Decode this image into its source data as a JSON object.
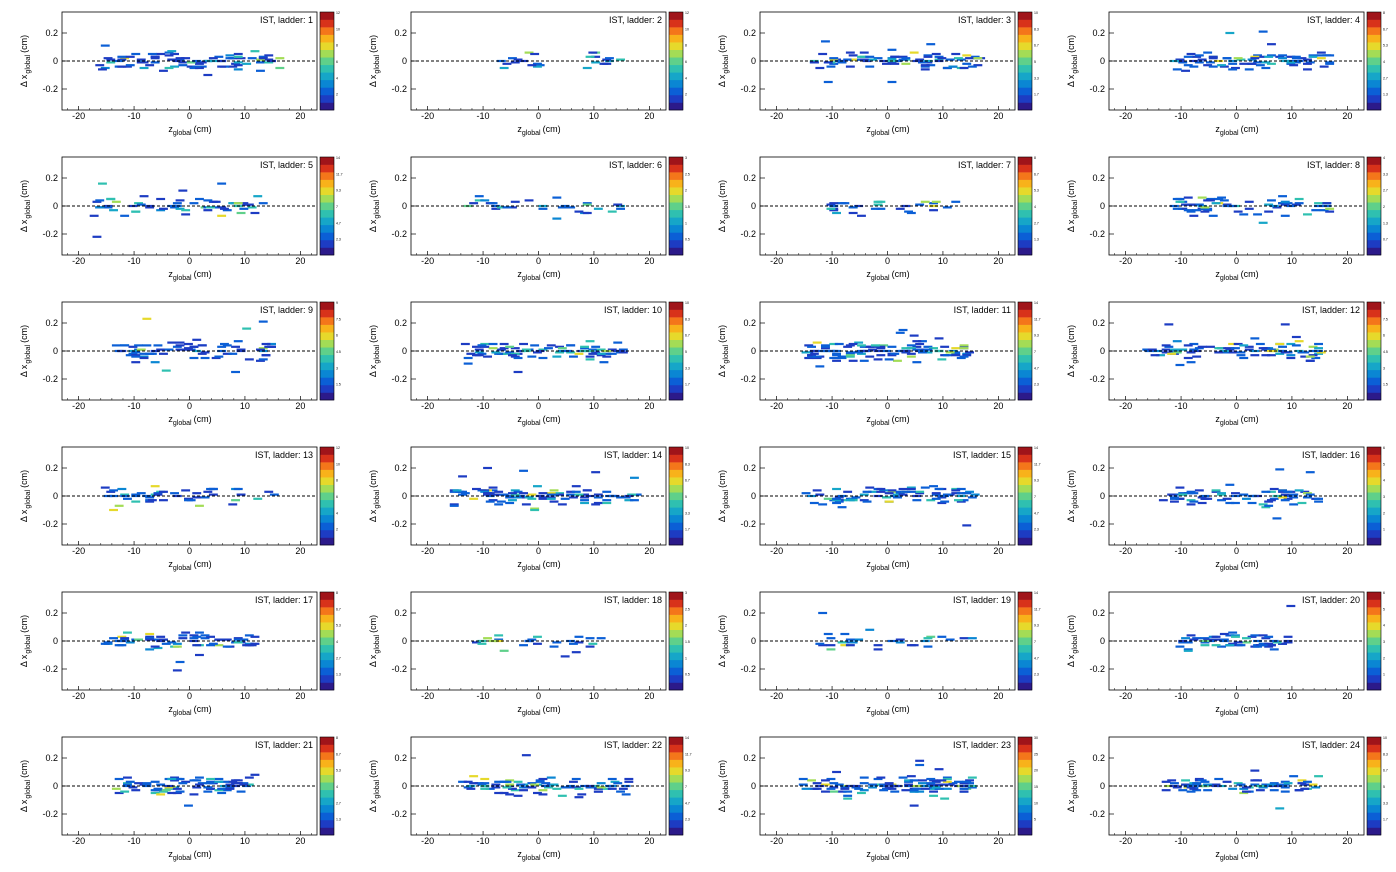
{
  "figure": {
    "rows": 6,
    "cols": 4
  },
  "colors": {
    "palette": [
      "#2c1a8a",
      "#1d3cc3",
      "#0b5fd6",
      "#0a86d3",
      "#16a6c8",
      "#2fc0b0",
      "#5fd08a",
      "#a3dc56",
      "#e6d92b",
      "#f8b21a",
      "#f4761a",
      "#d8321a",
      "#a0141a"
    ],
    "dashed_line": "#000000",
    "frame": "#000000"
  },
  "chart_data": [
    {
      "type": "heatmap",
      "title": "IST, ladder: 1",
      "xlabel_main": "z",
      "xlabel_sub": "global",
      "xlabel_unit": "(cm)",
      "ylabel_main": "Δ x",
      "ylabel_sub": "global",
      "ylabel_unit": "(cm)",
      "xlim": [
        -23,
        23
      ],
      "ylim": [
        -0.35,
        0.35
      ],
      "xticks": [
        "-20",
        "-10",
        "0",
        "10",
        "20"
      ],
      "yticks": [
        "-0.2",
        "0",
        "0.2"
      ],
      "zmax": 12,
      "spread": [
        -17,
        16
      ],
      "density": 1.0,
      "gaps": []
    },
    {
      "type": "heatmap",
      "title": "IST, ladder: 2",
      "xlabel_main": "z",
      "xlabel_sub": "global",
      "xlabel_unit": "(cm)",
      "ylabel_main": "Δ x",
      "ylabel_sub": "global",
      "ylabel_unit": "(cm)",
      "xlim": [
        -23,
        23
      ],
      "ylim": [
        -0.35,
        0.35
      ],
      "xticks": [
        "-20",
        "-10",
        "0",
        "10",
        "20"
      ],
      "yticks": [
        "-0.2",
        "0",
        "0.2"
      ],
      "zmax": 12,
      "spread": [
        -8,
        14
      ],
      "density": 0.55,
      "gaps": [
        [
          0,
          8
        ]
      ]
    },
    {
      "type": "heatmap",
      "title": "IST, ladder: 3",
      "xlabel_main": "z",
      "xlabel_sub": "global",
      "xlabel_unit": "(cm)",
      "ylabel_main": "Δ x",
      "ylabel_sub": "global",
      "ylabel_unit": "(cm)",
      "xlim": [
        -23,
        23
      ],
      "ylim": [
        -0.35,
        0.35
      ],
      "xticks": [
        "-20",
        "-10",
        "0",
        "10",
        "20"
      ],
      "yticks": [
        "-0.2",
        "0",
        "0.2"
      ],
      "zmax": 10,
      "spread": [
        -14,
        16
      ],
      "density": 1.0,
      "gaps": []
    },
    {
      "type": "heatmap",
      "title": "IST, ladder: 4",
      "xlabel_main": "z",
      "xlabel_sub": "global",
      "xlabel_unit": "(cm)",
      "ylabel_main": "Δ x",
      "ylabel_sub": "global",
      "ylabel_unit": "(cm)",
      "xlim": [
        -23,
        23
      ],
      "ylim": [
        -0.35,
        0.35
      ],
      "xticks": [
        "-20",
        "-10",
        "0",
        "10",
        "20"
      ],
      "yticks": [
        "-0.2",
        "0",
        "0.2"
      ],
      "zmax": 8,
      "spread": [
        -13,
        16
      ],
      "density": 0.9,
      "gaps": []
    },
    {
      "type": "heatmap",
      "title": "IST, ladder: 5",
      "xlabel_main": "z",
      "xlabel_sub": "global",
      "xlabel_unit": "(cm)",
      "ylabel_main": "Δ x",
      "ylabel_sub": "global",
      "ylabel_unit": "(cm)",
      "xlim": [
        -23,
        23
      ],
      "ylim": [
        -0.35,
        0.35
      ],
      "xticks": [
        "-20",
        "-10",
        "0",
        "10",
        "20"
      ],
      "yticks": [
        "-0.2",
        "0",
        "0.2"
      ],
      "zmax": 14,
      "spread": [
        -18,
        14
      ],
      "density": 0.7,
      "gaps": []
    },
    {
      "type": "heatmap",
      "title": "IST, ladder: 6",
      "xlabel_main": "z",
      "xlabel_sub": "global",
      "xlabel_unit": "(cm)",
      "ylabel_main": "Δ x",
      "ylabel_sub": "global",
      "ylabel_unit": "(cm)",
      "xlim": [
        -23,
        23
      ],
      "ylim": [
        -0.35,
        0.35
      ],
      "xticks": [
        "-20",
        "-10",
        "0",
        "10",
        "20"
      ],
      "yticks": [
        "-0.2",
        "0",
        "0.2"
      ],
      "zmax": 3,
      "spread": [
        -14,
        15
      ],
      "density": 0.35,
      "gaps": []
    },
    {
      "type": "heatmap",
      "title": "IST, ladder: 7",
      "xlabel_main": "z",
      "xlabel_sub": "global",
      "xlabel_unit": "(cm)",
      "ylabel_main": "Δ x",
      "ylabel_sub": "global",
      "ylabel_unit": "(cm)",
      "xlim": [
        -23,
        23
      ],
      "ylim": [
        -0.35,
        0.35
      ],
      "xticks": [
        "-20",
        "-10",
        "0",
        "10",
        "20"
      ],
      "yticks": [
        "-0.2",
        "0",
        "0.2"
      ],
      "zmax": 8,
      "spread": [
        -12,
        13
      ],
      "density": 0.35,
      "gaps": []
    },
    {
      "type": "heatmap",
      "title": "IST, ladder: 8",
      "xlabel_main": "z",
      "xlabel_sub": "global",
      "xlabel_unit": "(cm)",
      "ylabel_main": "Δ x",
      "ylabel_sub": "global",
      "ylabel_unit": "(cm)",
      "xlim": [
        -23,
        23
      ],
      "ylim": [
        -0.35,
        0.35
      ],
      "xticks": [
        "-20",
        "-10",
        "0",
        "10",
        "20"
      ],
      "yticks": [
        "-0.2",
        "0",
        "0.2"
      ],
      "zmax": 4,
      "spread": [
        -13,
        16
      ],
      "density": 0.8,
      "gaps": []
    },
    {
      "type": "heatmap",
      "title": "IST, ladder: 9",
      "xlabel_main": "z",
      "xlabel_sub": "global",
      "xlabel_unit": "(cm)",
      "ylabel_main": "Δ x",
      "ylabel_sub": "global",
      "ylabel_unit": "(cm)",
      "xlim": [
        -23,
        23
      ],
      "ylim": [
        -0.35,
        0.35
      ],
      "xticks": [
        "-20",
        "-10",
        "0",
        "10",
        "20"
      ],
      "yticks": [
        "-0.2",
        "0",
        "0.2"
      ],
      "zmax": 9,
      "spread": [
        -14,
        14
      ],
      "density": 0.85,
      "gaps": []
    },
    {
      "type": "heatmap",
      "title": "IST, ladder: 10",
      "xlabel_main": "z",
      "xlabel_sub": "global",
      "xlabel_unit": "(cm)",
      "ylabel_main": "Δ x",
      "ylabel_sub": "global",
      "ylabel_unit": "(cm)",
      "xlim": [
        -23,
        23
      ],
      "ylim": [
        -0.35,
        0.35
      ],
      "xticks": [
        "-20",
        "-10",
        "0",
        "10",
        "20"
      ],
      "yticks": [
        "-0.2",
        "0",
        "0.2"
      ],
      "zmax": 10,
      "spread": [
        -14,
        15
      ],
      "density": 0.95,
      "gaps": []
    },
    {
      "type": "heatmap",
      "title": "IST, ladder: 11",
      "xlabel_main": "z",
      "xlabel_sub": "global",
      "xlabel_unit": "(cm)",
      "ylabel_main": "Δ x",
      "ylabel_sub": "global",
      "ylabel_unit": "(cm)",
      "xlim": [
        -23,
        23
      ],
      "ylim": [
        -0.35,
        0.35
      ],
      "xticks": [
        "-20",
        "-10",
        "0",
        "10",
        "20"
      ],
      "yticks": [
        "-0.2",
        "0",
        "0.2"
      ],
      "zmax": 14,
      "spread": [
        -16,
        14
      ],
      "density": 1.3,
      "gaps": []
    },
    {
      "type": "heatmap",
      "title": "IST, ladder: 12",
      "xlabel_main": "z",
      "xlabel_sub": "global",
      "xlabel_unit": "(cm)",
      "ylabel_main": "Δ x",
      "ylabel_sub": "global",
      "ylabel_unit": "(cm)",
      "xlim": [
        -23,
        23
      ],
      "ylim": [
        -0.35,
        0.35
      ],
      "xticks": [
        "-20",
        "-10",
        "0",
        "10",
        "20"
      ],
      "yticks": [
        "-0.2",
        "0",
        "0.2"
      ],
      "zmax": 9,
      "spread": [
        -17,
        15
      ],
      "density": 1.1,
      "gaps": []
    },
    {
      "type": "heatmap",
      "title": "IST, ladder: 13",
      "xlabel_main": "z",
      "xlabel_sub": "global",
      "xlabel_unit": "(cm)",
      "ylabel_main": "Δ x",
      "ylabel_sub": "global",
      "ylabel_unit": "(cm)",
      "xlim": [
        -23,
        23
      ],
      "ylim": [
        -0.35,
        0.35
      ],
      "xticks": [
        "-20",
        "-10",
        "0",
        "10",
        "20"
      ],
      "yticks": [
        "-0.2",
        "0",
        "0.2"
      ],
      "zmax": 12,
      "spread": [
        -16,
        17
      ],
      "density": 0.55,
      "gaps": []
    },
    {
      "type": "heatmap",
      "title": "IST, ladder: 14",
      "xlabel_main": "z",
      "xlabel_sub": "global",
      "xlabel_unit": "(cm)",
      "ylabel_main": "Δ x",
      "ylabel_sub": "global",
      "ylabel_unit": "(cm)",
      "xlim": [
        -23,
        23
      ],
      "ylim": [
        -0.35,
        0.35
      ],
      "xticks": [
        "-20",
        "-10",
        "0",
        "10",
        "20"
      ],
      "yticks": [
        "-0.2",
        "0",
        "0.2"
      ],
      "zmax": 10,
      "spread": [
        -16,
        17
      ],
      "density": 1.1,
      "gaps": []
    },
    {
      "type": "heatmap",
      "title": "IST, ladder: 15",
      "xlabel_main": "z",
      "xlabel_sub": "global",
      "xlabel_unit": "(cm)",
      "ylabel_main": "Δ x",
      "ylabel_sub": "global",
      "ylabel_unit": "(cm)",
      "xlim": [
        -23,
        23
      ],
      "ylim": [
        -0.35,
        0.35
      ],
      "xticks": [
        "-20",
        "-10",
        "0",
        "10",
        "20"
      ],
      "yticks": [
        "-0.2",
        "0",
        "0.2"
      ],
      "zmax": 14,
      "spread": [
        -16,
        16
      ],
      "density": 1.0,
      "gaps": []
    },
    {
      "type": "heatmap",
      "title": "IST, ladder: 16",
      "xlabel_main": "z",
      "xlabel_sub": "global",
      "xlabel_unit": "(cm)",
      "ylabel_main": "Δ x",
      "ylabel_sub": "global",
      "ylabel_unit": "(cm)",
      "xlim": [
        -23,
        23
      ],
      "ylim": [
        -0.35,
        0.35
      ],
      "xticks": [
        "-20",
        "-10",
        "0",
        "10",
        "20"
      ],
      "yticks": [
        "-0.2",
        "0",
        "0.2"
      ],
      "zmax": 6,
      "spread": [
        -14,
        15
      ],
      "density": 0.85,
      "gaps": []
    },
    {
      "type": "heatmap",
      "title": "IST, ladder: 17",
      "xlabel_main": "z",
      "xlabel_sub": "global",
      "xlabel_unit": "(cm)",
      "ylabel_main": "Δ x",
      "ylabel_sub": "global",
      "ylabel_unit": "(cm)",
      "xlim": [
        -23,
        23
      ],
      "ylim": [
        -0.35,
        0.35
      ],
      "xticks": [
        "-20",
        "-10",
        "0",
        "10",
        "20"
      ],
      "yticks": [
        "-0.2",
        "0",
        "0.2"
      ],
      "zmax": 8,
      "spread": [
        -16,
        12
      ],
      "density": 0.8,
      "gaps": []
    },
    {
      "type": "heatmap",
      "title": "IST, ladder: 18",
      "xlabel_main": "z",
      "xlabel_sub": "global",
      "xlabel_unit": "(cm)",
      "ylabel_main": "Δ x",
      "ylabel_sub": "global",
      "ylabel_unit": "(cm)",
      "xlim": [
        -23,
        23
      ],
      "ylim": [
        -0.35,
        0.35
      ],
      "xticks": [
        "-20",
        "-10",
        "0",
        "10",
        "20"
      ],
      "yticks": [
        "-0.2",
        "0",
        "0.2"
      ],
      "zmax": 3,
      "spread": [
        -13,
        12
      ],
      "density": 0.3,
      "gaps": []
    },
    {
      "type": "heatmap",
      "title": "IST, ladder: 19",
      "xlabel_main": "z",
      "xlabel_sub": "global",
      "xlabel_unit": "(cm)",
      "ylabel_main": "Δ x",
      "ylabel_sub": "global",
      "ylabel_unit": "(cm)",
      "xlim": [
        -23,
        23
      ],
      "ylim": [
        -0.35,
        0.35
      ],
      "xticks": [
        "-20",
        "-10",
        "0",
        "10",
        "20"
      ],
      "yticks": [
        "-0.2",
        "0",
        "0.2"
      ],
      "zmax": 14,
      "spread": [
        -14,
        15
      ],
      "density": 0.35,
      "gaps": []
    },
    {
      "type": "heatmap",
      "title": "IST, ladder: 20",
      "xlabel_main": "z",
      "xlabel_sub": "global",
      "xlabel_unit": "(cm)",
      "ylabel_main": "Δ x",
      "ylabel_sub": "global",
      "ylabel_unit": "(cm)",
      "xlim": [
        -23,
        23
      ],
      "ylim": [
        -0.35,
        0.35
      ],
      "xticks": [
        "-20",
        "-10",
        "0",
        "10",
        "20"
      ],
      "yticks": [
        "-0.2",
        "0",
        "0.2"
      ],
      "zmax": 6,
      "spread": [
        -11,
        9
      ],
      "density": 0.7,
      "gaps": []
    },
    {
      "type": "heatmap",
      "title": "IST, ladder: 21",
      "xlabel_main": "z",
      "xlabel_sub": "global",
      "xlabel_unit": "(cm)",
      "ylabel_main": "Δ x",
      "ylabel_sub": "global",
      "ylabel_unit": "(cm)",
      "xlim": [
        -23,
        23
      ],
      "ylim": [
        -0.35,
        0.35
      ],
      "xticks": [
        "-20",
        "-10",
        "0",
        "10",
        "20"
      ],
      "yticks": [
        "-0.2",
        "0",
        "0.2"
      ],
      "zmax": 8,
      "spread": [
        -14,
        12
      ],
      "density": 0.95,
      "gaps": []
    },
    {
      "type": "heatmap",
      "title": "IST, ladder: 22",
      "xlabel_main": "z",
      "xlabel_sub": "global",
      "xlabel_unit": "(cm)",
      "ylabel_main": "Δ x",
      "ylabel_sub": "global",
      "ylabel_unit": "(cm)",
      "xlim": [
        -23,
        23
      ],
      "ylim": [
        -0.35,
        0.35
      ],
      "xticks": [
        "-20",
        "-10",
        "0",
        "10",
        "20"
      ],
      "yticks": [
        "-0.2",
        "0",
        "0.2"
      ],
      "zmax": 14,
      "spread": [
        -15,
        16
      ],
      "density": 1.0,
      "gaps": []
    },
    {
      "type": "heatmap",
      "title": "IST, ladder: 23",
      "xlabel_main": "z",
      "xlabel_sub": "global",
      "xlabel_unit": "(cm)",
      "ylabel_main": "Δ x",
      "ylabel_sub": "global",
      "ylabel_unit": "(cm)",
      "xlim": [
        -23,
        23
      ],
      "ylim": [
        -0.35,
        0.35
      ],
      "xticks": [
        "-20",
        "-10",
        "0",
        "10",
        "20"
      ],
      "yticks": [
        "-0.2",
        "0",
        "0.2"
      ],
      "zmax": 30,
      "spread": [
        -16,
        15
      ],
      "density": 1.3,
      "gaps": []
    },
    {
      "type": "heatmap",
      "title": "IST, ladder: 24",
      "xlabel_main": "z",
      "xlabel_sub": "global",
      "xlabel_unit": "(cm)",
      "ylabel_main": "Δ x",
      "ylabel_sub": "global",
      "ylabel_unit": "(cm)",
      "xlim": [
        -23,
        23
      ],
      "ylim": [
        -0.35,
        0.35
      ],
      "xticks": [
        "-20",
        "-10",
        "0",
        "10",
        "20"
      ],
      "yticks": [
        "-0.2",
        "0",
        "0.2"
      ],
      "zmax": 10,
      "spread": [
        -14,
        14
      ],
      "density": 1.0,
      "gaps": []
    }
  ]
}
